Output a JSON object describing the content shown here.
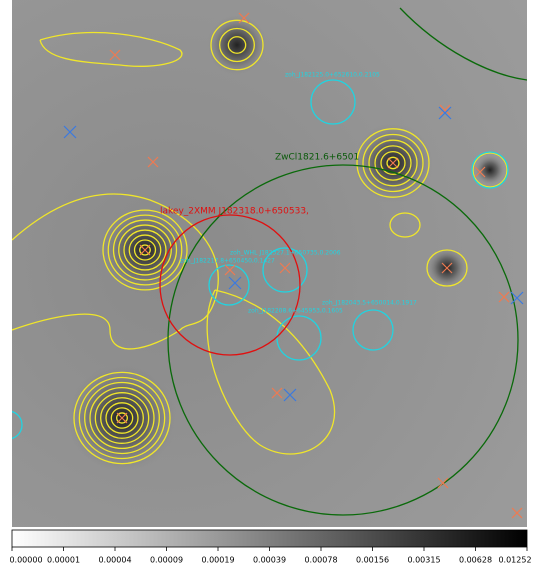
{
  "image": {
    "cluster_label": "ZwCl1821.6+6501",
    "target_label": "lakey_2XMM J182318.0+650533,",
    "source_labels": [
      "zoh_J182125.0+652610,0.2105",
      "zoh_WHL J182327.1+650735,0.2006",
      "zoh_J182043.5+650014,0.1917",
      "zoh_J182208.6+645953,0.1605",
      "zoh_J182217.8+650450,0.1427"
    ],
    "colorbar": {
      "labels": [
        "0.00000",
        "0.00001",
        "0.00004",
        "0.00009",
        "0.00019",
        "0.00039",
        "0.00078",
        "0.00156",
        "0.00315",
        "0.00628",
        "0.01252"
      ]
    }
  }
}
